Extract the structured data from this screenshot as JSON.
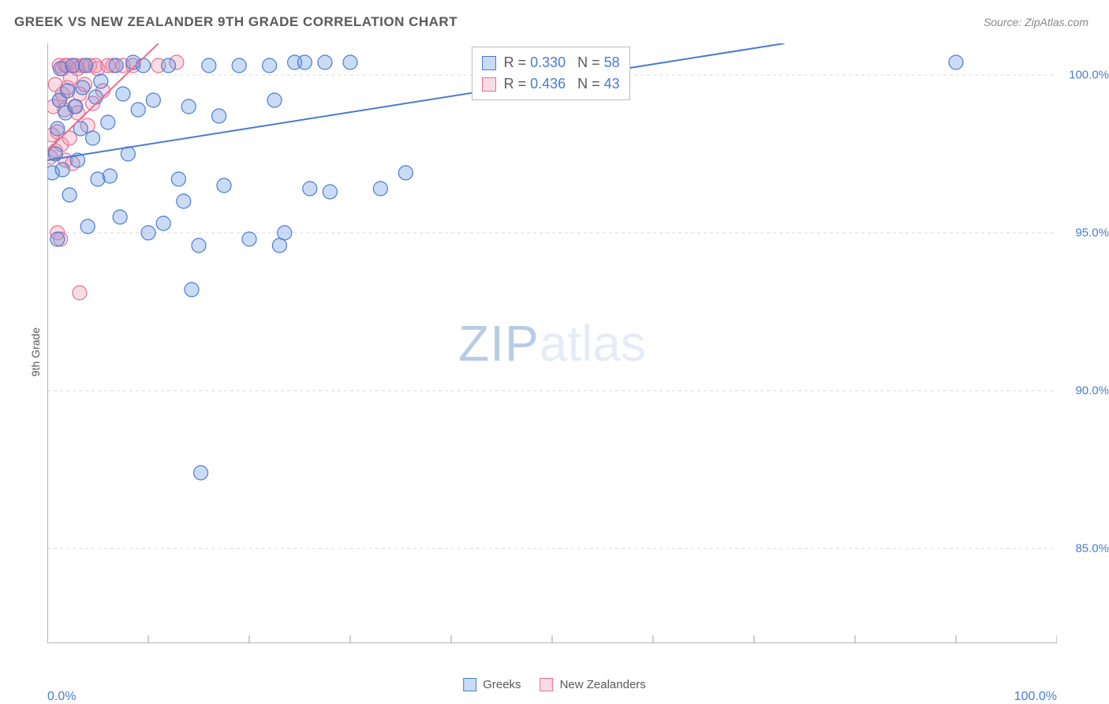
{
  "title": "GREEK VS NEW ZEALANDER 9TH GRADE CORRELATION CHART",
  "source": "Source: ZipAtlas.com",
  "ylabel": "9th Grade",
  "watermark": {
    "prefix": "ZIP",
    "suffix": "atlas"
  },
  "chart": {
    "type": "scatter",
    "background_color": "#ffffff",
    "grid_color": "#d8d8d8",
    "axis_color": "#9e9e9e",
    "xlim": [
      0,
      100
    ],
    "ylim": [
      82,
      101
    ],
    "xticks": [
      0,
      10,
      20,
      30,
      40,
      50,
      60,
      70,
      80,
      90,
      100
    ],
    "yticks": [
      85.0,
      90.0,
      95.0,
      100.0
    ],
    "ytick_labels": [
      "85.0%",
      "90.0%",
      "95.0%",
      "100.0%"
    ],
    "xaxis_left_label": "0.0%",
    "xaxis_right_label": "100.0%",
    "label_color": "#4a7bd0",
    "label_fontsize": 16,
    "title_fontsize": 17,
    "title_color": "#5a5a5a",
    "marker_radius": 9,
    "marker_fill_opacity": 0.35,
    "line_width": 2.0
  },
  "series": {
    "greeks": {
      "label": "Greeks",
      "color": "#6699e4",
      "stroke": "#4a7bd0",
      "R": "0.330",
      "N": "58",
      "regression": {
        "x1": 0,
        "y1": 97.3,
        "x2": 73,
        "y2": 101.0
      },
      "points": [
        [
          0.5,
          96.9
        ],
        [
          0.8,
          97.5
        ],
        [
          1.0,
          94.8
        ],
        [
          1.0,
          98.3
        ],
        [
          1.2,
          99.2
        ],
        [
          1.3,
          100.2
        ],
        [
          1.5,
          97.0
        ],
        [
          1.8,
          98.8
        ],
        [
          2.0,
          99.5
        ],
        [
          2.2,
          96.2
        ],
        [
          2.5,
          100.3
        ],
        [
          2.8,
          99.0
        ],
        [
          3.0,
          97.3
        ],
        [
          3.3,
          98.3
        ],
        [
          3.5,
          99.6
        ],
        [
          3.8,
          100.3
        ],
        [
          4.0,
          95.2
        ],
        [
          4.5,
          98.0
        ],
        [
          4.8,
          99.3
        ],
        [
          5.0,
          96.7
        ],
        [
          5.3,
          99.8
        ],
        [
          6.0,
          98.5
        ],
        [
          6.2,
          96.8
        ],
        [
          6.8,
          100.3
        ],
        [
          7.2,
          95.5
        ],
        [
          7.5,
          99.4
        ],
        [
          8.0,
          97.5
        ],
        [
          8.5,
          100.4
        ],
        [
          9.0,
          98.9
        ],
        [
          9.5,
          100.3
        ],
        [
          10.0,
          95.0
        ],
        [
          10.5,
          99.2
        ],
        [
          11.5,
          95.3
        ],
        [
          12.0,
          100.3
        ],
        [
          13.0,
          96.7
        ],
        [
          13.5,
          96.0
        ],
        [
          14.0,
          99.0
        ],
        [
          14.3,
          93.2
        ],
        [
          15.0,
          94.6
        ],
        [
          15.2,
          87.4
        ],
        [
          16.0,
          100.3
        ],
        [
          17.0,
          98.7
        ],
        [
          17.5,
          96.5
        ],
        [
          19.0,
          100.3
        ],
        [
          20.0,
          94.8
        ],
        [
          22.0,
          100.3
        ],
        [
          22.5,
          99.2
        ],
        [
          23.0,
          94.6
        ],
        [
          23.5,
          95.0
        ],
        [
          24.5,
          100.4
        ],
        [
          25.5,
          100.4
        ],
        [
          26.0,
          96.4
        ],
        [
          27.5,
          100.4
        ],
        [
          28.0,
          96.3
        ],
        [
          30.0,
          100.4
        ],
        [
          33.0,
          96.4
        ],
        [
          35.5,
          96.9
        ],
        [
          90.0,
          100.4
        ]
      ]
    },
    "new_zealanders": {
      "label": "New Zealanders",
      "color": "#f29bb3",
      "stroke": "#ea6d91",
      "R": "0.436",
      "N": "43",
      "regression": {
        "x1": 0,
        "y1": 97.6,
        "x2": 11,
        "y2": 101.0
      },
      "points": [
        [
          0.3,
          97.4
        ],
        [
          0.5,
          98.1
        ],
        [
          0.6,
          99.0
        ],
        [
          0.8,
          97.6
        ],
        [
          0.8,
          99.7
        ],
        [
          1.0,
          95.0
        ],
        [
          1.0,
          98.2
        ],
        [
          1.2,
          99.2
        ],
        [
          1.2,
          100.3
        ],
        [
          1.3,
          94.8
        ],
        [
          1.4,
          97.8
        ],
        [
          1.5,
          99.4
        ],
        [
          1.5,
          100.2
        ],
        [
          1.7,
          98.9
        ],
        [
          1.8,
          97.3
        ],
        [
          1.8,
          100.3
        ],
        [
          2.0,
          99.6
        ],
        [
          2.0,
          100.3
        ],
        [
          2.2,
          98.0
        ],
        [
          2.3,
          99.9
        ],
        [
          2.5,
          97.2
        ],
        [
          2.5,
          100.3
        ],
        [
          2.7,
          99.0
        ],
        [
          2.8,
          100.3
        ],
        [
          3.0,
          98.8
        ],
        [
          3.0,
          100.2
        ],
        [
          3.2,
          93.1
        ],
        [
          3.2,
          99.4
        ],
        [
          3.5,
          100.3
        ],
        [
          3.7,
          99.7
        ],
        [
          3.8,
          100.3
        ],
        [
          4.0,
          98.4
        ],
        [
          4.2,
          100.3
        ],
        [
          4.5,
          99.1
        ],
        [
          4.8,
          100.3
        ],
        [
          5.0,
          100.2
        ],
        [
          5.5,
          99.5
        ],
        [
          6.0,
          100.3
        ],
        [
          6.5,
          100.3
        ],
        [
          7.5,
          100.3
        ],
        [
          8.5,
          100.3
        ],
        [
          11.0,
          100.3
        ],
        [
          12.8,
          100.4
        ]
      ]
    }
  },
  "stat_legend": {
    "rows": [
      {
        "swatch": "greeks",
        "R_label": "R =",
        "N_label": "N ="
      },
      {
        "swatch": "new_zealanders",
        "R_label": "R =",
        "N_label": "N ="
      }
    ]
  }
}
